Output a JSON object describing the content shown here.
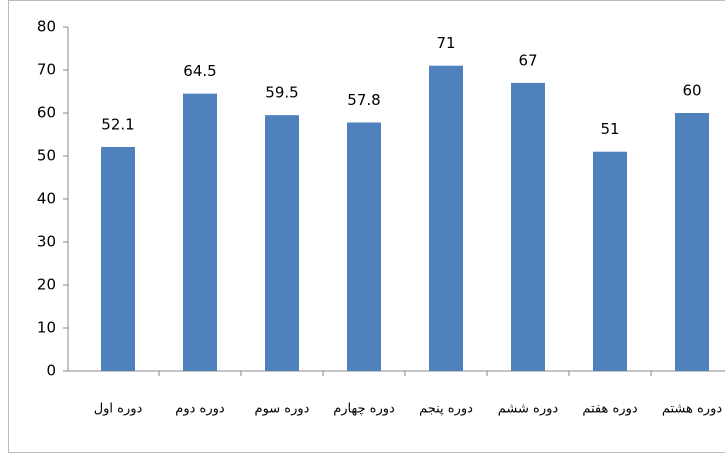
{
  "chart_data": {
    "type": "bar",
    "categories": [
      "دوره اول",
      "دوره دوم",
      "دوره سوم",
      "دوره چهارم",
      "دوره پنجم",
      "دوره ششم",
      "دوره هفتم",
      "دوره هشتم"
    ],
    "values": [
      52.1,
      64.5,
      59.5,
      57.8,
      71,
      67,
      51,
      60
    ],
    "color": "#4f81bd",
    "ylim": [
      0,
      80
    ],
    "yticks": [
      0,
      10,
      20,
      30,
      40,
      50,
      60,
      70,
      80
    ],
    "grid": false
  }
}
